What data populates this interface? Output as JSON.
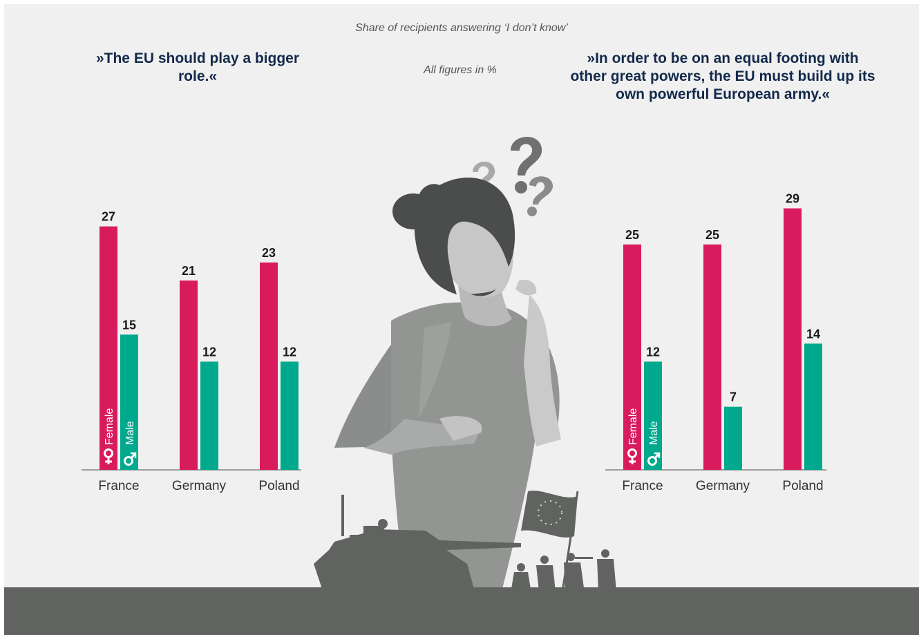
{
  "header": {
    "subtitle": "Share of recipients answering ‘I don’t know’",
    "units": "All figures in %"
  },
  "legend": {
    "female": "Female",
    "male": "Male"
  },
  "colors": {
    "female": "#d81b5d",
    "male": "#00a88e",
    "background": "#eff0ef",
    "ground": "#616361"
  },
  "chart_data": [
    {
      "type": "bar",
      "title": "»The EU should play a bigger role.«",
      "categories": [
        "France",
        "Germany",
        "Poland"
      ],
      "series": [
        {
          "name": "Female",
          "values": [
            27,
            21,
            23
          ]
        },
        {
          "name": "Male",
          "values": [
            15,
            12,
            12
          ]
        }
      ],
      "ylim": [
        0,
        30
      ]
    },
    {
      "type": "bar",
      "title": "»In order to be on an equal footing with other great powers, the EU must build up its own powerful European army.«",
      "categories": [
        "France",
        "Germany",
        "Poland"
      ],
      "series": [
        {
          "name": "Female",
          "values": [
            25,
            25,
            29
          ]
        },
        {
          "name": "Male",
          "values": [
            12,
            7,
            14
          ]
        }
      ],
      "ylim": [
        0,
        30
      ]
    }
  ]
}
